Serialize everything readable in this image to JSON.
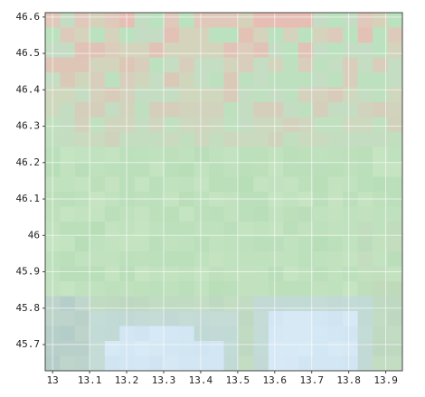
{
  "chart_data": {
    "type": "raster",
    "xlim": [
      12.98,
      13.945
    ],
    "ylim": [
      45.628,
      46.612
    ],
    "xticks": [
      13,
      13.1,
      13.2,
      13.3,
      13.4,
      13.5,
      13.6,
      13.7,
      13.8,
      13.9
    ],
    "yticks": [
      45.7,
      45.8,
      45.9,
      46,
      46.1,
      46.2,
      46.3,
      46.4,
      46.5,
      46.6
    ],
    "grid": true
  }
}
